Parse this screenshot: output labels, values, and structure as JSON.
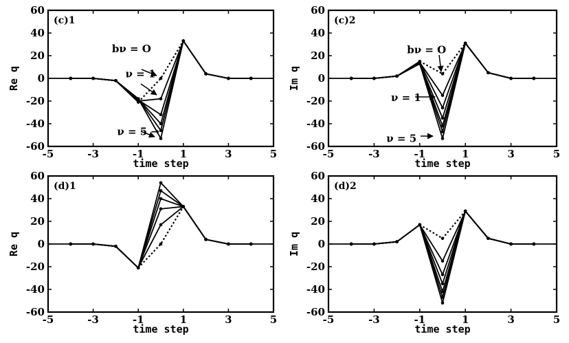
{
  "chart_data": [
    {
      "type": "line",
      "title": "(c)1",
      "xlabel": "time step",
      "ylabel": "Re q",
      "xlim": [
        -5,
        5
      ],
      "ylim": [
        -60,
        60
      ],
      "xticks": [
        -5,
        -3,
        -1,
        1,
        3,
        5
      ],
      "yticks": [
        -60,
        -40,
        -20,
        0,
        20,
        40,
        60
      ],
      "x": [
        -4,
        -3,
        -2,
        -1,
        0,
        1,
        2,
        3,
        4
      ],
      "series": [
        {
          "style": "dotted",
          "values": [
            0,
            0,
            -2,
            -21,
            0,
            33,
            4,
            0,
            0
          ]
        },
        {
          "style": "solid",
          "values": [
            0,
            0,
            -2,
            -20,
            -18,
            33,
            4,
            0,
            0
          ]
        },
        {
          "style": "solid",
          "values": [
            0,
            0,
            -2,
            -19,
            -32,
            33,
            4,
            0,
            0
          ]
        },
        {
          "style": "solid",
          "values": [
            0,
            0,
            -2,
            -18,
            -40,
            33,
            4,
            0,
            0
          ]
        },
        {
          "style": "solid",
          "values": [
            0,
            0,
            -2,
            -18,
            -46,
            33,
            4,
            0,
            0
          ]
        },
        {
          "style": "solid",
          "values": [
            0,
            0,
            -2,
            -18,
            -53,
            33,
            4,
            0,
            0
          ]
        }
      ],
      "annotations": [
        {
          "text": "bν = O",
          "x": -1.3,
          "y": 23
        },
        {
          "text": "ν = 1",
          "x": -0.9,
          "y": 1
        },
        {
          "text": "ν = 5 →",
          "x": -1.0,
          "y": -50
        }
      ]
    },
    {
      "type": "line",
      "title": "(c)2",
      "xlabel": "time step",
      "ylabel": "Im q",
      "xlim": [
        -5,
        5
      ],
      "ylim": [
        -60,
        60
      ],
      "xticks": [
        -5,
        -3,
        -1,
        1,
        3,
        5
      ],
      "yticks": [
        -60,
        -40,
        -20,
        0,
        20,
        40,
        60
      ],
      "x": [
        -4,
        -3,
        -2,
        -1,
        0,
        1,
        2,
        3,
        4
      ],
      "series": [
        {
          "style": "dotted",
          "values": [
            0,
            0,
            2,
            15,
            4,
            31,
            5,
            0,
            0
          ]
        },
        {
          "style": "solid",
          "values": [
            0,
            0,
            2,
            14,
            -15,
            31,
            5,
            0,
            0
          ]
        },
        {
          "style": "solid",
          "values": [
            0,
            0,
            2,
            14,
            -26,
            31,
            5,
            0,
            0
          ]
        },
        {
          "style": "solid",
          "values": [
            0,
            0,
            2,
            13,
            -35,
            31,
            5,
            0,
            0
          ]
        },
        {
          "style": "solid",
          "values": [
            0,
            0,
            2,
            13,
            -42,
            31,
            5,
            0,
            0
          ]
        },
        {
          "style": "solid",
          "values": [
            0,
            0,
            2,
            13,
            -47,
            31,
            5,
            0,
            0
          ]
        },
        {
          "style": "solid",
          "values": [
            0,
            0,
            2,
            13,
            -53,
            31,
            5,
            0,
            0
          ]
        }
      ],
      "annotations": [
        {
          "text": "bν = O",
          "x": -0.7,
          "y": 22
        },
        {
          "text": "ν = 1",
          "x": -1.6,
          "y": -20
        },
        {
          "text": "ν = 5",
          "x": -1.8,
          "y": -56
        }
      ]
    },
    {
      "type": "line",
      "title": "(d)1",
      "xlabel": "time step",
      "ylabel": "Re q",
      "xlim": [
        -5,
        5
      ],
      "ylim": [
        -60,
        60
      ],
      "xticks": [
        -5,
        -3,
        -1,
        1,
        3,
        5
      ],
      "yticks": [
        -60,
        -40,
        -20,
        0,
        20,
        40,
        60
      ],
      "x": [
        -4,
        -3,
        -2,
        -1,
        0,
        1,
        2,
        3,
        4
      ],
      "series": [
        {
          "style": "dotted",
          "values": [
            0,
            0,
            -2,
            -21,
            0,
            33,
            4,
            0,
            0
          ]
        },
        {
          "style": "solid",
          "values": [
            0,
            0,
            -2,
            -21,
            17,
            33,
            4,
            0,
            0
          ]
        },
        {
          "style": "solid",
          "values": [
            0,
            0,
            -2,
            -21,
            31,
            33,
            4,
            0,
            0
          ]
        },
        {
          "style": "solid",
          "values": [
            0,
            0,
            -2,
            -21,
            40,
            33,
            4,
            0,
            0
          ]
        },
        {
          "style": "solid",
          "values": [
            0,
            0,
            -2,
            -21,
            47,
            33,
            4,
            0,
            0
          ]
        },
        {
          "style": "solid",
          "values": [
            0,
            0,
            -2,
            -21,
            54,
            33,
            4,
            0,
            0
          ]
        }
      ]
    },
    {
      "type": "line",
      "title": "(d)2",
      "xlabel": "time step",
      "ylabel": "Im q",
      "xlim": [
        -5,
        5
      ],
      "ylim": [
        -60,
        60
      ],
      "xticks": [
        -5,
        -3,
        -1,
        1,
        3,
        5
      ],
      "yticks": [
        -60,
        -40,
        -20,
        0,
        20,
        40,
        60
      ],
      "x": [
        -4,
        -3,
        -2,
        -1,
        0,
        1,
        2,
        3,
        4
      ],
      "series": [
        {
          "style": "dotted",
          "values": [
            0,
            0,
            2,
            17,
            5,
            29,
            5,
            0,
            0
          ]
        },
        {
          "style": "solid",
          "values": [
            0,
            0,
            2,
            17,
            -15,
            29,
            5,
            0,
            0
          ]
        },
        {
          "style": "solid",
          "values": [
            0,
            0,
            2,
            17,
            -27,
            29,
            5,
            0,
            0
          ]
        },
        {
          "style": "solid",
          "values": [
            0,
            0,
            2,
            17,
            -35,
            29,
            5,
            0,
            0
          ]
        },
        {
          "style": "solid",
          "values": [
            0,
            0,
            2,
            17,
            -42,
            29,
            5,
            0,
            0
          ]
        },
        {
          "style": "solid",
          "values": [
            0,
            0,
            2,
            17,
            -47,
            29,
            5,
            0,
            0
          ]
        },
        {
          "style": "solid",
          "values": [
            0,
            0,
            2,
            17,
            -52,
            29,
            5,
            0,
            0
          ]
        }
      ]
    }
  ]
}
